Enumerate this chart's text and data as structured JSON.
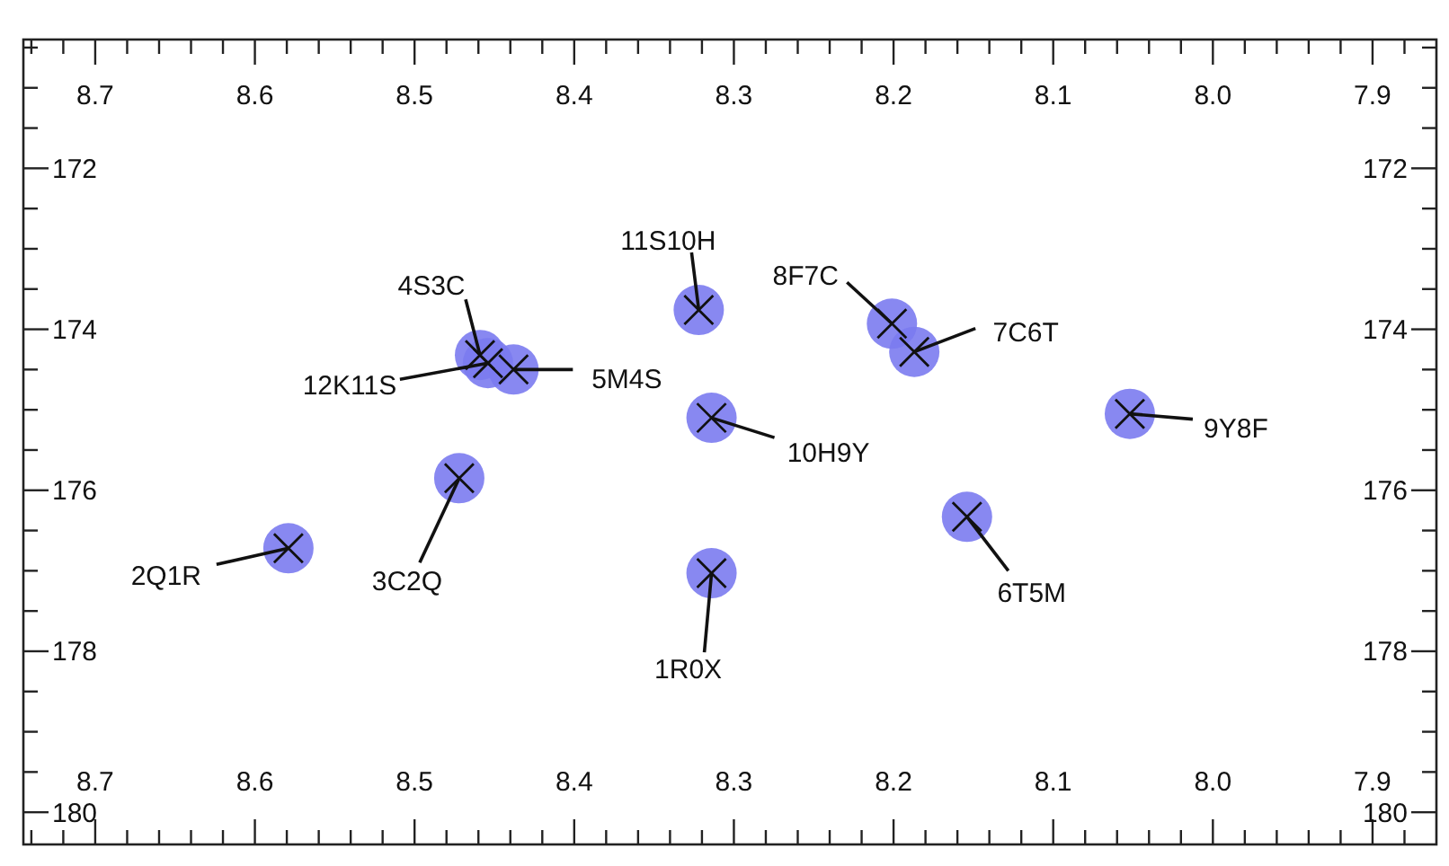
{
  "chart_data": {
    "type": "scatter",
    "xlim": [
      8.745,
      7.86
    ],
    "ylim": [
      180.4,
      170.4
    ],
    "xticks": [
      {
        "value": 8.74,
        "label": null
      },
      {
        "value": 8.72,
        "label": null
      },
      8.7,
      {
        "value": 8.68,
        "label": null
      },
      {
        "value": 8.66,
        "label": null
      },
      {
        "value": 8.64,
        "label": null
      },
      {
        "value": 8.62,
        "label": null
      },
      8.6,
      {
        "value": 8.58,
        "label": null
      },
      {
        "value": 8.56,
        "label": null
      },
      {
        "value": 8.54,
        "label": null
      },
      {
        "value": 8.52,
        "label": null
      },
      8.5,
      {
        "value": 8.48,
        "label": null
      },
      {
        "value": 8.46,
        "label": null
      },
      {
        "value": 8.44,
        "label": null
      },
      {
        "value": 8.42,
        "label": null
      },
      8.4,
      {
        "value": 8.38,
        "label": null
      },
      {
        "value": 8.36,
        "label": null
      },
      {
        "value": 8.34,
        "label": null
      },
      {
        "value": 8.32,
        "label": null
      },
      8.3,
      {
        "value": 8.28,
        "label": null
      },
      {
        "value": 8.26,
        "label": null
      },
      {
        "value": 8.24,
        "label": null
      },
      {
        "value": 8.22,
        "label": null
      },
      8.2,
      {
        "value": 8.18,
        "label": null
      },
      {
        "value": 8.16,
        "label": null
      },
      {
        "value": 8.14,
        "label": null
      },
      {
        "value": 8.12,
        "label": null
      },
      8.1,
      {
        "value": 8.08,
        "label": null
      },
      {
        "value": 8.06,
        "label": null
      },
      {
        "value": 8.04,
        "label": null
      },
      {
        "value": 8.02,
        "label": null
      },
      {
        "value": 8,
        "label": "8.0"
      },
      {
        "value": 7.98,
        "label": null
      },
      {
        "value": 7.96,
        "label": null
      },
      {
        "value": 7.94,
        "label": null
      },
      {
        "value": 7.92,
        "label": null
      },
      7.9,
      {
        "value": 7.88,
        "label": null
      }
    ],
    "x2lim": [
      8.745,
      7.86
    ],
    "x2ticks": [
      {
        "value": 8.74,
        "label": null
      },
      {
        "value": 8.72,
        "label": null
      },
      8.7,
      {
        "value": 8.68,
        "label": null
      },
      {
        "value": 8.66,
        "label": null
      },
      {
        "value": 8.64,
        "label": null
      },
      {
        "value": 8.62,
        "label": null
      },
      8.6,
      {
        "value": 8.58,
        "label": null
      },
      {
        "value": 8.56,
        "label": null
      },
      {
        "value": 8.54,
        "label": null
      },
      {
        "value": 8.52,
        "label": null
      },
      8.5,
      {
        "value": 8.48,
        "label": null
      },
      {
        "value": 8.46,
        "label": null
      },
      {
        "value": 8.44,
        "label": null
      },
      {
        "value": 8.42,
        "label": null
      },
      8.4,
      {
        "value": 8.38,
        "label": null
      },
      {
        "value": 8.36,
        "label": null
      },
      {
        "value": 8.34,
        "label": null
      },
      {
        "value": 8.32,
        "label": null
      },
      8.3,
      {
        "value": 8.28,
        "label": null
      },
      {
        "value": 8.26,
        "label": null
      },
      {
        "value": 8.24,
        "label": null
      },
      {
        "value": 8.22,
        "label": null
      },
      8.2,
      {
        "value": 8.18,
        "label": null
      },
      {
        "value": 8.16,
        "label": null
      },
      {
        "value": 8.14,
        "label": null
      },
      {
        "value": 8.12,
        "label": null
      },
      8.1,
      {
        "value": 8.08,
        "label": null
      },
      {
        "value": 8.06,
        "label": null
      },
      {
        "value": 8.04,
        "label": null
      },
      {
        "value": 8.02,
        "label": null
      },
      {
        "value": 8,
        "label": "8.0"
      },
      {
        "value": 7.98,
        "label": null
      },
      {
        "value": 7.96,
        "label": null
      },
      {
        "value": 7.94,
        "label": null
      },
      {
        "value": 7.92,
        "label": null
      },
      7.9,
      {
        "value": 7.88,
        "label": null
      }
    ],
    "yticks": [
      {
        "value": 170.5,
        "label": null
      },
      {
        "value": 171,
        "label": null
      },
      {
        "value": 171.5,
        "label": null
      },
      172,
      {
        "value": 172.5,
        "label": null
      },
      {
        "value": 173,
        "label": null
      },
      {
        "value": 173.5,
        "label": null
      },
      174,
      {
        "value": 174.5,
        "label": null
      },
      {
        "value": 175,
        "label": null
      },
      {
        "value": 175.5,
        "label": null
      },
      176,
      {
        "value": 176.5,
        "label": null
      },
      {
        "value": 177,
        "label": null
      },
      {
        "value": 177.5,
        "label": null
      },
      178,
      {
        "value": 178.5,
        "label": null
      },
      {
        "value": 179,
        "label": null
      },
      {
        "value": 179.5,
        "label": null
      },
      180
    ],
    "y2lim": [
      180.4,
      170.4
    ],
    "y2ticks": [
      {
        "value": 170.5,
        "label": null
      },
      {
        "value": 171,
        "label": null
      },
      {
        "value": 171.5,
        "label": null
      },
      172,
      {
        "value": 172.5,
        "label": null
      },
      {
        "value": 173,
        "label": null
      },
      {
        "value": 173.5,
        "label": null
      },
      174,
      {
        "value": 174.5,
        "label": null
      },
      {
        "value": 175,
        "label": null
      },
      {
        "value": 175.5,
        "label": null
      },
      176,
      {
        "value": 176.5,
        "label": null
      },
      {
        "value": 177,
        "label": null
      },
      {
        "value": 177.5,
        "label": null
      },
      178,
      {
        "value": 178.5,
        "label": null
      },
      {
        "value": 179,
        "label": null
      },
      {
        "value": 179.5,
        "label": null
      },
      180
    ],
    "marker": "cross",
    "series": [
      {
        "color": "#111111",
        "x": [
          8.314,
          8.579,
          8.472,
          8.459,
          8.438,
          8.154,
          8.187,
          8.201,
          8.052,
          8.314,
          8.322,
          8.454
        ],
        "values": [
          177.03,
          176.72,
          175.85,
          174.32,
          174.5,
          176.33,
          174.28,
          173.93,
          175.05,
          175.1,
          173.76,
          174.42
        ]
      }
    ],
    "annotations": [
      {
        "text": "1R0X",
        "x": 8.314,
        "y": 177.03
      },
      {
        "text": "2Q1R",
        "x": 8.579,
        "y": 176.72
      },
      {
        "text": "3C2Q",
        "x": 8.472,
        "y": 175.85
      },
      {
        "text": "4S3C",
        "x": 8.459,
        "y": 174.32
      },
      {
        "text": "5M4S",
        "x": 8.438,
        "y": 174.5
      },
      {
        "text": "6T5M",
        "x": 8.154,
        "y": 176.33
      },
      {
        "text": "7C6T",
        "x": 8.187,
        "y": 174.28
      },
      {
        "text": "8F7C",
        "x": 8.201,
        "y": 173.93
      },
      {
        "text": "9Y8F",
        "x": 8.052,
        "y": 175.05
      },
      {
        "text": "10H9Y",
        "x": 8.314,
        "y": 175.1
      },
      {
        "text": "11S10H",
        "x": 8.322,
        "y": 173.76
      },
      {
        "text": "12K11S",
        "x": 8.454,
        "y": 174.42
      }
    ]
  }
}
